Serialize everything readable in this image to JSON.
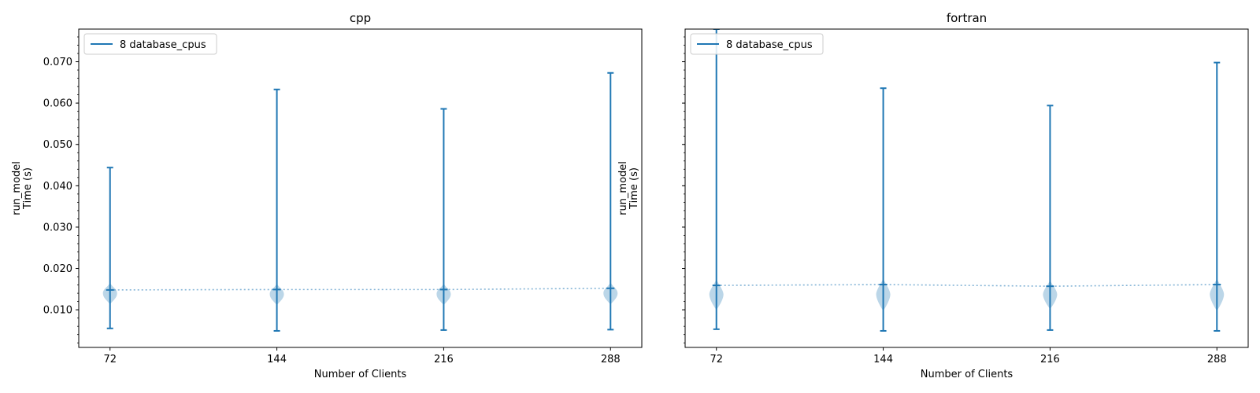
{
  "chart_data": [
    {
      "type": "violin",
      "title": "cpp",
      "xlabel": "Number of Clients",
      "ylabel_lines": [
        "run_model",
        "Time (s)"
      ],
      "categories": [
        "72",
        "144",
        "216",
        "288"
      ],
      "x": [
        72,
        144,
        216,
        288
      ],
      "xlim": [
        58.5,
        301.5
      ],
      "ylim": [
        0.0009,
        0.0779
      ],
      "yticks": [
        0.01,
        0.02,
        0.03,
        0.04,
        0.05,
        0.06,
        0.07
      ],
      "ytick_labels": [
        "0.010",
        "0.020",
        "0.030",
        "0.040",
        "0.050",
        "0.060",
        "0.070"
      ],
      "show_ytick_labels": true,
      "series": [
        {
          "name": "8 database_cpus",
          "color": "#1f77b4",
          "min": [
            0.0055,
            0.0049,
            0.0051,
            0.0052
          ],
          "max": [
            0.0444,
            0.0633,
            0.0586,
            0.0673
          ],
          "median": [
            0.0148,
            0.0149,
            0.0149,
            0.0152
          ],
          "body_center": [
            0.014,
            0.0138,
            0.0138,
            0.014
          ],
          "mean_line": [
            0.0148,
            0.0149,
            0.0149,
            0.0152
          ]
        }
      ],
      "legend": {
        "label": "8 database_cpus",
        "position": "upper-left"
      }
    },
    {
      "type": "violin",
      "title": "fortran",
      "xlabel": "Number of Clients",
      "ylabel_lines": [
        "run_model",
        "Time (s)"
      ],
      "categories": [
        "72",
        "144",
        "216",
        "288"
      ],
      "x": [
        72,
        144,
        216,
        288
      ],
      "xlim": [
        58.5,
        301.5
      ],
      "ylim": [
        0.0009,
        0.0779
      ],
      "yticks": [
        0.01,
        0.02,
        0.03,
        0.04,
        0.05,
        0.06,
        0.07
      ],
      "ytick_labels": [],
      "show_ytick_labels": false,
      "series": [
        {
          "name": "8 database_cpus",
          "color": "#1f77b4",
          "min": [
            0.0053,
            0.0049,
            0.0051,
            0.0049
          ],
          "max": [
            0.0779,
            0.0636,
            0.0594,
            0.0698
          ],
          "median": [
            0.0159,
            0.0161,
            0.0157,
            0.0161
          ],
          "body_center": [
            0.0137,
            0.0137,
            0.0137,
            0.0137
          ],
          "mean_line": [
            0.0159,
            0.0161,
            0.0157,
            0.0161
          ]
        }
      ],
      "legend": {
        "label": "8 database_cpus",
        "position": "upper-left"
      }
    }
  ]
}
